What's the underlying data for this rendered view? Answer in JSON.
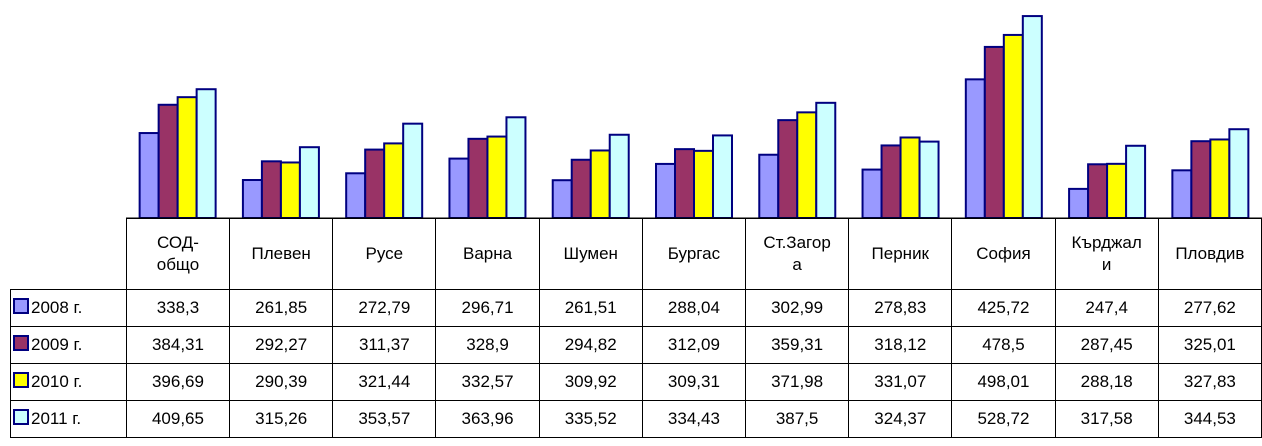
{
  "chart_data": {
    "type": "bar",
    "categories": [
      "СОД-общо",
      "Плевен",
      "Русе",
      "Варна",
      "Шумен",
      "Бургас",
      "Ст.Загора",
      "Перник",
      "София",
      "Кърджали",
      "Пловдив"
    ],
    "ylim": [
      200,
      550
    ],
    "series": [
      {
        "name": "2008 г.",
        "color": "#9999ff",
        "values": [
          338.3,
          261.85,
          272.79,
          296.71,
          261.51,
          288.04,
          302.99,
          278.83,
          425.72,
          247.4,
          277.62
        ],
        "value_labels": [
          "338,3",
          "261,85",
          "272,79",
          "296,71",
          "261,51",
          "288,04",
          "302,99",
          "278,83",
          "425,72",
          "247,4",
          "277,62"
        ]
      },
      {
        "name": "2009 г.",
        "color": "#993366",
        "values": [
          384.31,
          292.27,
          311.37,
          328.9,
          294.82,
          312.09,
          359.31,
          318.12,
          478.5,
          287.45,
          325.01
        ],
        "value_labels": [
          "384,31",
          "292,27",
          "311,37",
          "328,9",
          "294,82",
          "312,09",
          "359,31",
          "318,12",
          "478,5",
          "287,45",
          "325,01"
        ]
      },
      {
        "name": "2010 г.",
        "color": "#ffff00",
        "values": [
          396.69,
          290.39,
          321.44,
          332.57,
          309.92,
          309.31,
          371.98,
          331.07,
          498.01,
          288.18,
          327.83
        ],
        "value_labels": [
          "396,69",
          "290,39",
          "321,44",
          "332,57",
          "309,92",
          "309,31",
          "371,98",
          "331,07",
          "498,01",
          "288,18",
          "327,83"
        ]
      },
      {
        "name": "2011 г.",
        "color": "#ccffff",
        "values": [
          409.65,
          315.26,
          353.57,
          363.96,
          335.52,
          334.43,
          387.5,
          324.37,
          528.72,
          317.58,
          344.53
        ],
        "value_labels": [
          "409,65",
          "315,26",
          "353,57",
          "363,96",
          "335,52",
          "334,43",
          "387,5",
          "324,37",
          "528,72",
          "317,58",
          "344,53"
        ]
      }
    ]
  }
}
